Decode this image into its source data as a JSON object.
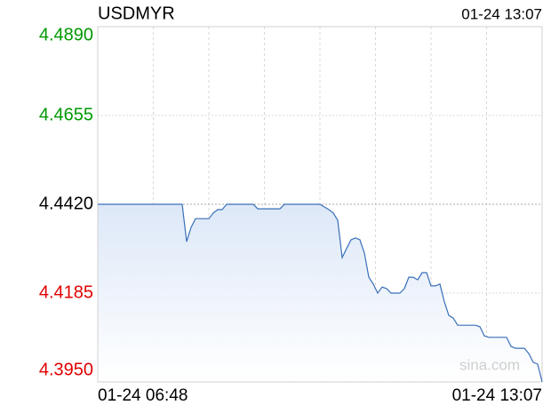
{
  "chart_data": {
    "type": "line",
    "title": "USDMYR",
    "timestamp": "01-24 13:07",
    "watermark": "sina.com",
    "categories": [
      "01-24 06:48",
      null,
      null,
      null,
      null,
      null,
      null,
      null,
      null,
      null,
      null,
      null,
      null,
      null,
      null,
      null,
      null,
      null,
      null,
      null,
      null,
      null,
      null,
      null,
      null,
      null,
      null,
      null,
      null,
      null,
      null,
      null,
      null,
      null,
      null,
      null,
      null,
      null,
      null,
      null,
      null,
      null,
      null,
      null,
      null,
      null,
      null,
      null,
      null,
      null,
      null,
      null,
      null,
      null,
      null,
      null,
      null,
      null,
      null,
      null,
      null,
      null,
      null,
      null,
      null,
      null,
      null,
      null,
      null,
      null,
      null,
      null,
      null,
      null,
      null,
      null,
      null,
      null,
      null,
      null,
      null,
      null,
      null,
      null,
      null,
      null,
      null,
      null,
      null,
      null,
      null,
      null,
      null,
      null,
      null,
      null,
      null,
      null,
      null,
      null,
      "01-24 13:07"
    ],
    "values": [
      4.442,
      4.442,
      4.442,
      4.442,
      4.442,
      4.442,
      4.442,
      4.442,
      4.442,
      4.442,
      4.442,
      4.442,
      4.442,
      4.442,
      4.442,
      4.442,
      4.442,
      4.442,
      4.442,
      4.442,
      4.4321,
      4.4359,
      4.4382,
      4.4382,
      4.4382,
      4.4382,
      4.4397,
      4.4406,
      4.4406,
      4.442,
      4.442,
      4.442,
      4.442,
      4.442,
      4.442,
      4.442,
      4.4408,
      4.4408,
      4.4408,
      4.4408,
      4.4408,
      4.4408,
      4.442,
      4.442,
      4.442,
      4.442,
      4.442,
      4.442,
      4.442,
      4.442,
      4.442,
      4.4413,
      4.4406,
      4.4397,
      4.4378,
      4.4279,
      4.4303,
      4.4326,
      4.4331,
      4.4326,
      4.4291,
      4.4227,
      4.4209,
      4.4185,
      4.4201,
      4.4197,
      4.4185,
      4.4185,
      4.4185,
      4.4197,
      4.4227,
      4.4227,
      4.422,
      4.4239,
      4.4239,
      4.4204,
      4.4204,
      4.4209,
      4.4162,
      4.4126,
      4.4119,
      4.41,
      4.41,
      4.41,
      4.41,
      4.41,
      4.4096,
      4.4072,
      4.4068,
      4.4068,
      4.4068,
      4.4068,
      4.4068,
      4.4044,
      4.4039,
      4.4039,
      4.4039,
      4.4025,
      4.4002,
      4.3997,
      4.395
    ],
    "color": "#3a6fb8",
    "ylim": [
      4.395,
      4.489
    ],
    "yticks": [
      {
        "value": 4.489,
        "label": "4.4890"
      },
      4.4655,
      {
        "value": 4.442,
        "label": "4.4420"
      },
      4.4185,
      {
        "value": 4.395,
        "label": "4.3950"
      }
    ],
    "ytick_colors": [
      "#009900",
      "#009900",
      "#000000",
      "#e00000",
      "#e00000"
    ],
    "grid": true
  }
}
